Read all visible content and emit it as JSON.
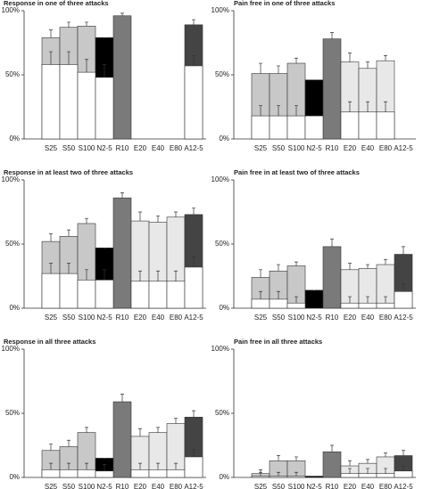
{
  "chart_data": [
    {
      "type": "bar",
      "title": "Response in one of three attacks",
      "categories": [
        "S25",
        "S50",
        "S100",
        "N2-5",
        "R10",
        "E20",
        "E40",
        "E80",
        "A12-5"
      ],
      "series": [
        {
          "colors": [
            "#c8c8c8",
            "#c8c8c8",
            "#c8c8c8",
            "#000000",
            "#7a7a7a",
            "#e8e8e8",
            "#e8e8e8",
            "#e8e8e8",
            "#444444"
          ],
          "values": [
            79,
            87,
            88,
            79,
            96,
            null,
            null,
            null,
            89
          ],
          "errors": [
            6,
            4,
            3,
            6,
            2,
            null,
            null,
            null,
            4
          ]
        },
        {
          "color": "#ffffff",
          "values": [
            58,
            58,
            52,
            48,
            null,
            null,
            null,
            null,
            57
          ],
          "errors": [
            10,
            10,
            10,
            10,
            null,
            null,
            null,
            null,
            8
          ]
        }
      ],
      "ylim": [
        0,
        100
      ],
      "yticks": [
        {
          "value": 0,
          "label": "0%"
        },
        {
          "value": 50,
          "label": "50%"
        },
        {
          "value": 100,
          "label": "100%"
        }
      ]
    },
    {
      "type": "bar",
      "title": "Pain free in one of three attacks",
      "categories": [
        "S25",
        "S50",
        "S100",
        "N2-5",
        "R10",
        "E20",
        "E40",
        "E80",
        "A12-5"
      ],
      "series": [
        {
          "colors": [
            "#c8c8c8",
            "#c8c8c8",
            "#c8c8c8",
            "#000000",
            "#7a7a7a",
            "#e8e8e8",
            "#e8e8e8",
            "#e8e8e8",
            "#444444"
          ],
          "values": [
            51,
            51,
            59,
            46,
            78,
            60,
            55,
            61,
            null
          ],
          "errors": [
            8,
            6,
            4,
            null,
            5,
            7,
            5,
            4,
            null
          ]
        },
        {
          "color": "#ffffff",
          "values": [
            18,
            18,
            18,
            18,
            null,
            21,
            21,
            21,
            null
          ],
          "errors": [
            8,
            8,
            8,
            null,
            null,
            8,
            8,
            8,
            null
          ]
        }
      ],
      "ylim": [
        0,
        100
      ],
      "yticks": [
        {
          "value": 0,
          "label": "0%"
        },
        {
          "value": 50,
          "label": "50%"
        },
        {
          "value": 100,
          "label": "100%"
        }
      ]
    },
    {
      "type": "bar",
      "title": "Response in at least two of three attacks",
      "categories": [
        "S25",
        "S50",
        "S100",
        "N2-5",
        "R10",
        "E20",
        "E40",
        "E80",
        "A12-5"
      ],
      "series": [
        {
          "colors": [
            "#c8c8c8",
            "#c8c8c8",
            "#c8c8c8",
            "#000000",
            "#7a7a7a",
            "#e8e8e8",
            "#e8e8e8",
            "#e8e8e8",
            "#444444"
          ],
          "values": [
            52,
            56,
            66,
            47,
            86,
            68,
            67,
            71,
            73
          ],
          "errors": [
            6,
            5,
            4,
            8,
            4,
            7,
            5,
            4,
            5
          ]
        },
        {
          "color": "#ffffff",
          "values": [
            27,
            27,
            22,
            22,
            null,
            21,
            21,
            21,
            32
          ],
          "errors": [
            8,
            8,
            8,
            8,
            null,
            8,
            8,
            8,
            8
          ]
        }
      ],
      "ylim": [
        0,
        100
      ],
      "yticks": [
        {
          "value": 0,
          "label": "0%"
        },
        {
          "value": 50,
          "label": "50%"
        },
        {
          "value": 100,
          "label": "100%"
        }
      ]
    },
    {
      "type": "bar",
      "title": "Pain free in at least two of three attacks",
      "categories": [
        "S25",
        "S50",
        "S100",
        "N2-5",
        "R10",
        "E20",
        "E40",
        "E80",
        "A12-5"
      ],
      "series": [
        {
          "colors": [
            "#c8c8c8",
            "#c8c8c8",
            "#c8c8c8",
            "#000000",
            "#7a7a7a",
            "#e8e8e8",
            "#e8e8e8",
            "#e8e8e8",
            "#444444"
          ],
          "values": [
            24,
            29,
            33,
            14,
            48,
            30,
            31,
            34,
            42
          ],
          "errors": [
            6,
            5,
            3,
            6,
            6,
            5,
            3,
            4,
            6
          ]
        },
        {
          "color": "#ffffff",
          "values": [
            7,
            7,
            4,
            null,
            null,
            4,
            4,
            4,
            13
          ],
          "errors": [
            6,
            6,
            5,
            null,
            null,
            5,
            5,
            5,
            6
          ]
        }
      ],
      "ylim": [
        0,
        100
      ],
      "yticks": [
        {
          "value": 0,
          "label": "0%"
        },
        {
          "value": 50,
          "label": "50%"
        },
        {
          "value": 100,
          "label": "100%"
        }
      ]
    },
    {
      "type": "bar",
      "title": "Response in all three attacks",
      "categories": [
        "S25",
        "S50",
        "S100",
        "N2-5",
        "R10",
        "E20",
        "E40",
        "E80",
        "A12-5"
      ],
      "series": [
        {
          "colors": [
            "#c8c8c8",
            "#c8c8c8",
            "#c8c8c8",
            "#000000",
            "#7a7a7a",
            "#e8e8e8",
            "#e8e8e8",
            "#e8e8e8",
            "#444444"
          ],
          "values": [
            21,
            24,
            35,
            15,
            59,
            32,
            35,
            42,
            47
          ],
          "errors": [
            5,
            5,
            4,
            6,
            6,
            6,
            4,
            4,
            5
          ]
        },
        {
          "color": "#ffffff",
          "values": [
            6,
            6,
            6,
            5,
            null,
            6,
            6,
            6,
            16
          ],
          "errors": [
            5,
            5,
            5,
            5,
            null,
            5,
            5,
            5,
            6
          ]
        }
      ],
      "ylim": [
        0,
        100
      ],
      "yticks": [
        {
          "value": 0,
          "label": "0%"
        },
        {
          "value": 50,
          "label": "50%"
        },
        {
          "value": 100,
          "label": "100%"
        }
      ]
    },
    {
      "type": "bar",
      "title": "Pain free in all three attacks",
      "categories": [
        "S25",
        "S50",
        "S100",
        "N2-5",
        "R10",
        "E20",
        "E40",
        "E80",
        "A12-5"
      ],
      "series": [
        {
          "colors": [
            "#c8c8c8",
            "#c8c8c8",
            "#c8c8c8",
            "#000000",
            "#7a7a7a",
            "#e8e8e8",
            "#e8e8e8",
            "#e8e8e8",
            "#444444"
          ],
          "values": [
            3,
            13,
            13,
            1,
            20,
            9,
            11,
            16,
            17
          ],
          "errors": [
            3,
            4,
            3,
            2,
            5,
            4,
            3,
            3,
            4
          ]
        },
        {
          "color": "#ffffff",
          "values": [
            1,
            1,
            1,
            null,
            null,
            3,
            3,
            3,
            5
          ],
          "errors": [
            3,
            3,
            3,
            null,
            null,
            4,
            4,
            4,
            4
          ]
        }
      ],
      "ylim": [
        0,
        100
      ],
      "yticks": [
        {
          "value": 0,
          "label": "0%"
        },
        {
          "value": 50,
          "label": "50%"
        },
        {
          "value": 100,
          "label": "100%"
        }
      ]
    }
  ]
}
